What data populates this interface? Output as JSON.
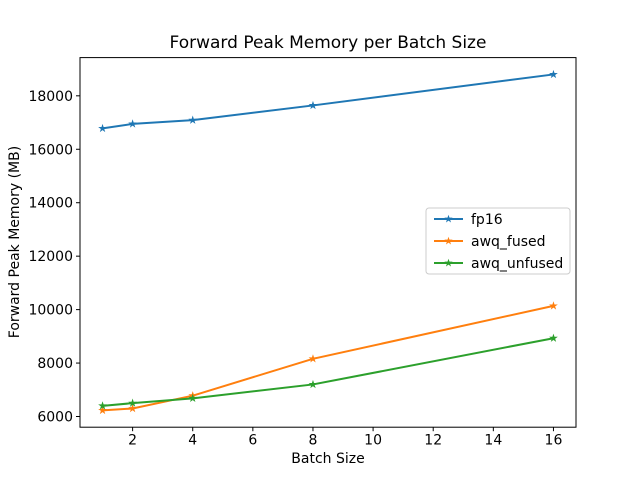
{
  "chart_data": {
    "type": "line",
    "title": "Forward Peak Memory per Batch Size",
    "xlabel": "Batch Size",
    "ylabel": "Forward Peak Memory (MB)",
    "x": [
      1,
      2,
      4,
      8,
      16
    ],
    "series": [
      {
        "name": "fp16",
        "color": "#1f77b4",
        "marker": "star",
        "values": [
          16780,
          16950,
          17090,
          17640,
          18800
        ]
      },
      {
        "name": "awq_fused",
        "color": "#ff7f0e",
        "marker": "star",
        "values": [
          6230,
          6300,
          6780,
          8160,
          10140
        ]
      },
      {
        "name": "awq_unfused",
        "color": "#2ca02c",
        "marker": "star",
        "values": [
          6400,
          6500,
          6680,
          7200,
          8930
        ]
      }
    ],
    "xticks": [
      2,
      4,
      6,
      8,
      10,
      12,
      14,
      16
    ],
    "yticks": [
      6000,
      8000,
      10000,
      12000,
      14000,
      16000,
      18000
    ],
    "xlim": [
      0.25,
      16.75
    ],
    "ylim": [
      5600,
      19430
    ],
    "grid": false,
    "legend_position": "center-right",
    "background_color": "#ffffff",
    "text_color": "#000000",
    "spine_color": "#000000",
    "legend_border_color": "#cccccc"
  }
}
